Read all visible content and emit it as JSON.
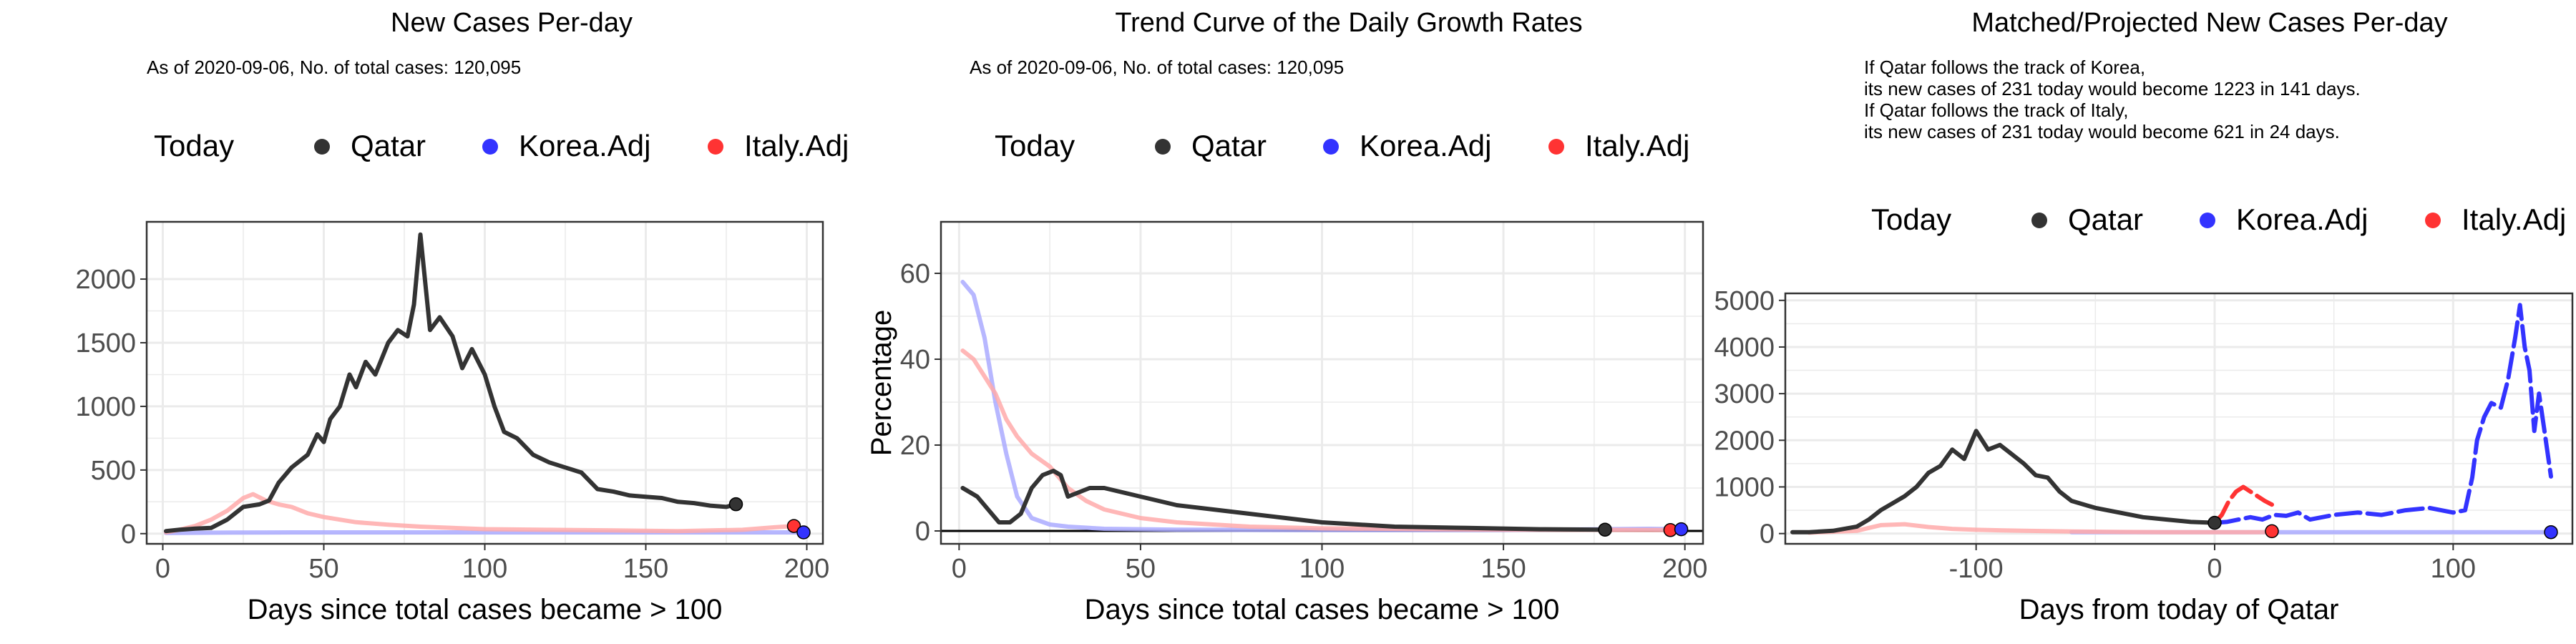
{
  "colors": {
    "qatar": "#333333",
    "korea": "#3333ff",
    "italy": "#ff3333",
    "korea_faint": "#aaaaff",
    "italy_faint": "#ffaaaa",
    "grid": "#ebebeb"
  },
  "chart_data": [
    {
      "type": "line",
      "title": "New Cases Per-day",
      "subtitle": "As of 2020-09-06, No. of total cases: 120,095",
      "legend_title": "Today",
      "legend_position": "top",
      "xlabel": "Days since total cases became > 100",
      "ylabel": "",
      "xlim": [
        -5,
        205
      ],
      "ylim": [
        -80,
        2450
      ],
      "x_ticks": [
        0,
        50,
        100,
        150,
        200
      ],
      "y_ticks": [
        0,
        500,
        1000,
        1500,
        2000
      ],
      "grid": true,
      "series": [
        {
          "name": "Qatar",
          "color": "#333333",
          "x": [
            1,
            5,
            10,
            15,
            20,
            25,
            30,
            33,
            36,
            40,
            45,
            48,
            50,
            52,
            55,
            58,
            60,
            63,
            66,
            70,
            73,
            76,
            78,
            80,
            83,
            86,
            90,
            93,
            96,
            100,
            103,
            106,
            110,
            115,
            120,
            125,
            130,
            135,
            140,
            145,
            150,
            155,
            160,
            165,
            170,
            175,
            178
          ],
          "y": [
            20,
            30,
            40,
            45,
            110,
            210,
            230,
            260,
            400,
            520,
            620,
            780,
            720,
            900,
            1000,
            1250,
            1150,
            1350,
            1250,
            1500,
            1600,
            1550,
            1800,
            2350,
            1600,
            1700,
            1550,
            1300,
            1450,
            1250,
            1000,
            800,
            750,
            620,
            560,
            520,
            480,
            350,
            330,
            300,
            290,
            280,
            250,
            240,
            220,
            210,
            231
          ]
        },
        {
          "name": "Korea.Adj",
          "color": "#3333ff",
          "faint": true,
          "x": [
            1,
            20,
            40,
            60,
            80,
            100,
            120,
            140,
            160,
            180,
            199
          ],
          "y": [
            5,
            8,
            10,
            10,
            10,
            10,
            10,
            10,
            10,
            10,
            10
          ]
        },
        {
          "name": "Italy.Adj",
          "color": "#ff3333",
          "faint": true,
          "x": [
            1,
            5,
            10,
            15,
            20,
            25,
            28,
            32,
            36,
            40,
            45,
            50,
            55,
            60,
            70,
            80,
            90,
            100,
            120,
            140,
            160,
            180,
            190,
            196
          ],
          "y": [
            10,
            30,
            60,
            110,
            180,
            280,
            310,
            260,
            230,
            210,
            160,
            130,
            110,
            90,
            70,
            55,
            45,
            35,
            30,
            25,
            20,
            30,
            50,
            60
          ]
        }
      ],
      "today_points": [
        {
          "series": "Qatar",
          "x": 178,
          "y": 231
        },
        {
          "series": "Italy.Adj",
          "x": 196,
          "y": 60
        },
        {
          "series": "Korea.Adj",
          "x": 199,
          "y": 10
        }
      ]
    },
    {
      "type": "line",
      "title": "Trend Curve of the Daily Growth Rates",
      "subtitle": "As of 2020-09-06, No. of total cases: 120,095",
      "legend_title": "Today",
      "legend_position": "top",
      "xlabel": "Days since total cases became > 100",
      "ylabel": "Percentage",
      "xlim": [
        -5,
        205
      ],
      "ylim": [
        -3,
        72
      ],
      "x_ticks": [
        0,
        50,
        100,
        150,
        200
      ],
      "y_ticks": [
        0,
        20,
        40,
        60
      ],
      "grid": true,
      "series": [
        {
          "name": "Qatar",
          "color": "#333333",
          "x": [
            1,
            5,
            8,
            11,
            14,
            17,
            20,
            23,
            26,
            28,
            30,
            33,
            36,
            40,
            45,
            50,
            55,
            60,
            70,
            80,
            90,
            100,
            110,
            120,
            140,
            160,
            178
          ],
          "y": [
            10,
            8,
            5,
            2,
            2,
            4,
            10,
            13,
            14,
            13,
            8,
            9,
            10,
            10,
            9,
            8,
            7,
            6,
            5,
            4,
            3,
            2,
            1.5,
            1,
            0.7,
            0.4,
            0.3
          ]
        },
        {
          "name": "Korea.Adj",
          "color": "#3333ff",
          "faint": true,
          "x": [
            1,
            4,
            7,
            10,
            13,
            16,
            20,
            25,
            30,
            40,
            60,
            100,
            150,
            190,
            199
          ],
          "y": [
            58,
            55,
            45,
            30,
            18,
            8,
            3,
            1.5,
            1,
            0.5,
            0.3,
            0.2,
            0.2,
            0.5,
            0.4
          ]
        },
        {
          "name": "Italy.Adj",
          "color": "#ff3333",
          "faint": true,
          "x": [
            1,
            4,
            7,
            10,
            13,
            16,
            20,
            25,
            30,
            35,
            40,
            50,
            60,
            80,
            100,
            150,
            196
          ],
          "y": [
            42,
            40,
            36,
            32,
            26,
            22,
            18,
            15,
            10,
            7,
            5,
            3,
            2,
            1,
            0.6,
            0.3,
            0.2
          ]
        }
      ],
      "today_points": [
        {
          "series": "Qatar",
          "x": 178,
          "y": 0.3
        },
        {
          "series": "Italy.Adj",
          "x": 196,
          "y": 0.2
        },
        {
          "series": "Korea.Adj",
          "x": 199,
          "y": 0.4
        }
      ]
    },
    {
      "type": "line",
      "title": "Matched/Projected New Cases Per-day",
      "annotation": [
        "If Qatar follows the track of Korea,",
        "its new cases of 231 today would become 1223 in 141 days.",
        "If Qatar follows the track of Italy,",
        "its new cases of 231 today would become 621 in 24 days."
      ],
      "legend_title": "Today",
      "legend_position": "top",
      "xlabel": "Days from today of Qatar",
      "ylabel": "",
      "xlim": [
        -180,
        150
      ],
      "ylim": [
        -220,
        5150
      ],
      "x_ticks": [
        -100,
        0,
        100
      ],
      "y_ticks": [
        0,
        1000,
        2000,
        3000,
        4000,
        5000
      ],
      "grid": true,
      "series": [
        {
          "name": "Qatar",
          "color": "#333333",
          "x": [
            -177,
            -170,
            -160,
            -150,
            -145,
            -140,
            -135,
            -130,
            -125,
            -120,
            -115,
            -110,
            -105,
            -100,
            -95,
            -90,
            -85,
            -80,
            -75,
            -70,
            -65,
            -60,
            -50,
            -40,
            -30,
            -20,
            -10,
            0
          ],
          "y": [
            30,
            30,
            60,
            150,
            300,
            500,
            650,
            800,
            1000,
            1300,
            1450,
            1800,
            1600,
            2200,
            1800,
            1900,
            1700,
            1500,
            1250,
            1200,
            900,
            700,
            550,
            450,
            350,
            300,
            250,
            231
          ]
        },
        {
          "name": "Korea.Adj",
          "color": "#3333ff",
          "dashed": true,
          "x": [
            0,
            5,
            10,
            15,
            20,
            25,
            30,
            35,
            40,
            50,
            60,
            70,
            80,
            90,
            100,
            105,
            108,
            110,
            113,
            116,
            120,
            123,
            126,
            128,
            130,
            132,
            134,
            136,
            138,
            141
          ],
          "y": [
            231,
            250,
            300,
            350,
            300,
            400,
            380,
            450,
            300,
            400,
            450,
            400,
            500,
            550,
            450,
            500,
            1200,
            2000,
            2500,
            2800,
            2700,
            3300,
            4200,
            4900,
            4000,
            3500,
            2200,
            3000,
            2300,
            1223
          ]
        },
        {
          "name": "Korea.Adj",
          "color": "#3333ff",
          "faint": true,
          "x": [
            -60,
            -30,
            0,
            30,
            60,
            90,
            120,
            141
          ],
          "y": [
            30,
            30,
            30,
            30,
            30,
            30,
            30,
            30
          ]
        },
        {
          "name": "Italy.Adj",
          "color": "#ff3333",
          "dashed": true,
          "x": [
            0,
            3,
            6,
            9,
            12,
            15,
            18,
            21,
            24
          ],
          "y": [
            231,
            400,
            700,
            900,
            1000,
            900,
            800,
            700,
            621
          ]
        },
        {
          "name": "Italy.Adj",
          "color": "#ff3333",
          "faint": true,
          "x": [
            -170,
            -160,
            -150,
            -145,
            -140,
            -130,
            -120,
            -110,
            -100,
            -80,
            -60,
            -40,
            -20,
            0,
            10,
            24
          ],
          "y": [
            20,
            40,
            60,
            120,
            180,
            200,
            140,
            100,
            80,
            60,
            45,
            35,
            30,
            30,
            30,
            30
          ]
        }
      ],
      "today_points": [
        {
          "series": "Qatar",
          "x": 0,
          "y": 231
        },
        {
          "series": "Italy.Adj",
          "x": 24,
          "y": 50
        },
        {
          "series": "Korea.Adj",
          "x": 141,
          "y": 30
        }
      ]
    }
  ]
}
